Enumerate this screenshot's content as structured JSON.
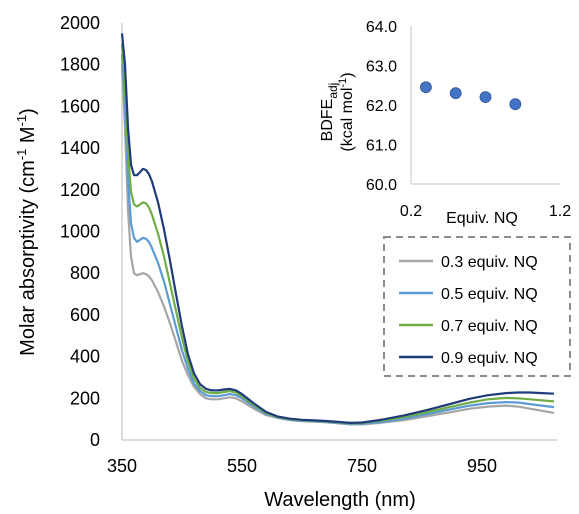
{
  "chart_data": [
    {
      "type": "line",
      "xlabel": "Wavelength (nm)",
      "ylabel_main": "Molar absorptivity (cm",
      "ylabel_sup1": "-1",
      "ylabel_mid": " M",
      "ylabel_sup2": "-1",
      "ylabel_end": ")",
      "xlim": [
        350,
        1075
      ],
      "ylim": [
        0,
        2000
      ],
      "xticks": [
        350,
        550,
        750,
        950
      ],
      "yticks": [
        0,
        200,
        400,
        600,
        800,
        1000,
        1200,
        1400,
        1600,
        1800,
        2000
      ],
      "legend_position": "inside-right",
      "series": [
        {
          "name": "0.3 equiv. NQ",
          "color": "#a6a6a6",
          "points": [
            [
              350,
              1800
            ],
            [
              355,
              1500
            ],
            [
              360,
              1100
            ],
            [
              365,
              880
            ],
            [
              370,
              800
            ],
            [
              375,
              790
            ],
            [
              380,
              795
            ],
            [
              385,
              800
            ],
            [
              390,
              795
            ],
            [
              395,
              785
            ],
            [
              400,
              765
            ],
            [
              410,
              710
            ],
            [
              420,
              640
            ],
            [
              430,
              560
            ],
            [
              440,
              470
            ],
            [
              450,
              380
            ],
            [
              460,
              310
            ],
            [
              470,
              255
            ],
            [
              480,
              220
            ],
            [
              490,
              200
            ],
            [
              500,
              195
            ],
            [
              510,
              195
            ],
            [
              520,
              200
            ],
            [
              530,
              205
            ],
            [
              540,
              200
            ],
            [
              550,
              185
            ],
            [
              570,
              150
            ],
            [
              590,
              120
            ],
            [
              610,
              105
            ],
            [
              630,
              95
            ],
            [
              650,
              90
            ],
            [
              670,
              88
            ],
            [
              690,
              85
            ],
            [
              710,
              80
            ],
            [
              730,
              75
            ],
            [
              750,
              75
            ],
            [
              780,
              82
            ],
            [
              820,
              95
            ],
            [
              860,
              115
            ],
            [
              900,
              135
            ],
            [
              930,
              150
            ],
            [
              960,
              160
            ],
            [
              990,
              165
            ],
            [
              1010,
              160
            ],
            [
              1030,
              150
            ],
            [
              1050,
              140
            ],
            [
              1070,
              130
            ]
          ]
        },
        {
          "name": "0.5 equiv. NQ",
          "color": "#5b9bd5",
          "points": [
            [
              350,
              1850
            ],
            [
              355,
              1600
            ],
            [
              360,
              1250
            ],
            [
              365,
              1040
            ],
            [
              370,
              970
            ],
            [
              375,
              950
            ],
            [
              380,
              960
            ],
            [
              385,
              970
            ],
            [
              390,
              965
            ],
            [
              395,
              950
            ],
            [
              400,
              920
            ],
            [
              410,
              850
            ],
            [
              420,
              760
            ],
            [
              430,
              650
            ],
            [
              440,
              540
            ],
            [
              450,
              430
            ],
            [
              460,
              340
            ],
            [
              470,
              270
            ],
            [
              480,
              235
            ],
            [
              490,
              215
            ],
            [
              500,
              210
            ],
            [
              510,
              210
            ],
            [
              520,
              215
            ],
            [
              530,
              220
            ],
            [
              540,
              215
            ],
            [
              550,
              200
            ],
            [
              570,
              160
            ],
            [
              590,
              125
            ],
            [
              610,
              108
            ],
            [
              630,
              98
            ],
            [
              650,
              92
            ],
            [
              670,
              90
            ],
            [
              690,
              87
            ],
            [
              710,
              82
            ],
            [
              730,
              77
            ],
            [
              750,
              78
            ],
            [
              780,
              86
            ],
            [
              820,
              102
            ],
            [
              860,
              125
            ],
            [
              900,
              148
            ],
            [
              930,
              165
            ],
            [
              960,
              177
            ],
            [
              990,
              182
            ],
            [
              1010,
              180
            ],
            [
              1030,
              172
            ],
            [
              1050,
              165
            ],
            [
              1070,
              158
            ]
          ]
        },
        {
          "name": "0.7 equiv. NQ",
          "color": "#70ad47",
          "points": [
            [
              350,
              1900
            ],
            [
              355,
              1700
            ],
            [
              360,
              1380
            ],
            [
              365,
              1190
            ],
            [
              370,
              1130
            ],
            [
              375,
              1120
            ],
            [
              380,
              1130
            ],
            [
              385,
              1140
            ],
            [
              390,
              1135
            ],
            [
              395,
              1115
            ],
            [
              400,
              1080
            ],
            [
              410,
              990
            ],
            [
              420,
              880
            ],
            [
              430,
              750
            ],
            [
              440,
              620
            ],
            [
              450,
              490
            ],
            [
              460,
              375
            ],
            [
              470,
              295
            ],
            [
              480,
              250
            ],
            [
              490,
              230
            ],
            [
              500,
              225
            ],
            [
              510,
              225
            ],
            [
              520,
              230
            ],
            [
              530,
              235
            ],
            [
              540,
              228
            ],
            [
              550,
              210
            ],
            [
              570,
              168
            ],
            [
              590,
              130
            ],
            [
              610,
              110
            ],
            [
              630,
              100
            ],
            [
              650,
              95
            ],
            [
              670,
              92
            ],
            [
              690,
              89
            ],
            [
              710,
              85
            ],
            [
              730,
              80
            ],
            [
              750,
              82
            ],
            [
              780,
              92
            ],
            [
              820,
              110
            ],
            [
              860,
              135
            ],
            [
              900,
              160
            ],
            [
              930,
              180
            ],
            [
              960,
              195
            ],
            [
              990,
              202
            ],
            [
              1010,
              200
            ],
            [
              1030,
              195
            ],
            [
              1050,
              190
            ],
            [
              1070,
              185
            ]
          ]
        },
        {
          "name": "0.9 equiv. NQ",
          "color": "#1f3b7a",
          "points": [
            [
              350,
              1950
            ],
            [
              355,
              1800
            ],
            [
              360,
              1500
            ],
            [
              365,
              1320
            ],
            [
              370,
              1270
            ],
            [
              375,
              1270
            ],
            [
              380,
              1285
            ],
            [
              385,
              1300
            ],
            [
              390,
              1295
            ],
            [
              395,
              1275
            ],
            [
              400,
              1240
            ],
            [
              410,
              1140
            ],
            [
              420,
              1010
            ],
            [
              430,
              860
            ],
            [
              440,
              700
            ],
            [
              450,
              545
            ],
            [
              460,
              410
            ],
            [
              470,
              320
            ],
            [
              480,
              268
            ],
            [
              490,
              245
            ],
            [
              500,
              238
            ],
            [
              510,
              238
            ],
            [
              520,
              242
            ],
            [
              530,
              245
            ],
            [
              540,
              238
            ],
            [
              550,
              220
            ],
            [
              570,
              175
            ],
            [
              590,
              135
            ],
            [
              610,
              112
            ],
            [
              630,
              102
            ],
            [
              650,
              97
            ],
            [
              670,
              94
            ],
            [
              690,
              91
            ],
            [
              710,
              87
            ],
            [
              730,
              82
            ],
            [
              750,
              84
            ],
            [
              780,
              96
            ],
            [
              820,
              118
            ],
            [
              860,
              145
            ],
            [
              900,
              175
            ],
            [
              930,
              198
            ],
            [
              960,
              215
            ],
            [
              990,
              225
            ],
            [
              1010,
              228
            ],
            [
              1030,
              228
            ],
            [
              1050,
              225
            ],
            [
              1070,
              222
            ]
          ]
        }
      ]
    },
    {
      "type": "scatter",
      "xlabel": "Equiv.  NQ",
      "ylabel_line1_main": "BDFE",
      "ylabel_line1_sub": "adj",
      "ylabel_line2_main": "(kcal mol",
      "ylabel_line2_sup": "-1",
      "ylabel_line2_end": ")",
      "xlim": [
        0.2,
        1.2
      ],
      "ylim": [
        60.0,
        64.0
      ],
      "xticks": [
        "0.2",
        "1.2"
      ],
      "yticks": [
        "60.0",
        "61.0",
        "62.0",
        "63.0",
        "64.0"
      ],
      "marker_color": "#4472c4",
      "x": [
        0.3,
        0.5,
        0.7,
        0.9
      ],
      "y": [
        62.45,
        62.3,
        62.2,
        62.02
      ]
    }
  ]
}
